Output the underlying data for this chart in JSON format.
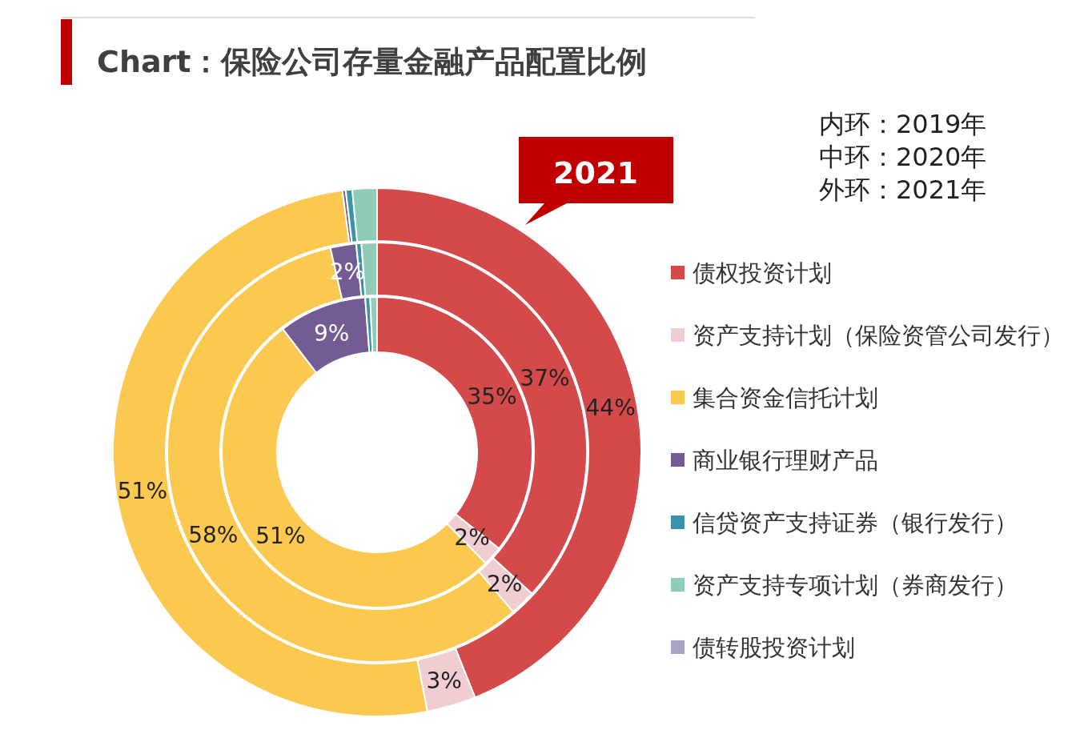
{
  "chart_data": {
    "type": "donut",
    "title": "Chart：保险公司存量金融产品配置比例",
    "categories": [
      "债权投资计划",
      "资产支持计划（保险资管公司发行）",
      "集合资金信托计划",
      "商业银行理财产品",
      "信贷资产支持证券（银行发行）",
      "资产支持专项计划（券商发行）",
      "债转股投资计划"
    ],
    "colors": [
      "#d44a4a",
      "#f0cdd0",
      "#fbc850",
      "#735b94",
      "#3c93a8",
      "#8ecbb9",
      "#a9a3c6"
    ],
    "series": [
      {
        "values": [
          35,
          2,
          51,
          9,
          0.5,
          0.7,
          null
        ],
        "value_labels": [
          "35%",
          "2%",
          "51%",
          "9%",
          null,
          null,
          null
        ]
      },
      {
        "values": [
          37,
          2,
          58,
          2,
          0.4,
          1.2,
          null
        ],
        "value_labels": [
          "37%",
          "2%",
          "58%",
          "2%",
          null,
          null,
          null
        ]
      },
      {
        "values": [
          44,
          3,
          51,
          0.2,
          0.4,
          1.5,
          null
        ],
        "value_labels": [
          "44%",
          "3%",
          "51%",
          null,
          null,
          null,
          null
        ]
      }
    ],
    "legend": "right",
    "annotations": [
      "内环：2019年",
      "中环：2020年",
      "外环：2021年",
      "2021"
    ]
  }
}
